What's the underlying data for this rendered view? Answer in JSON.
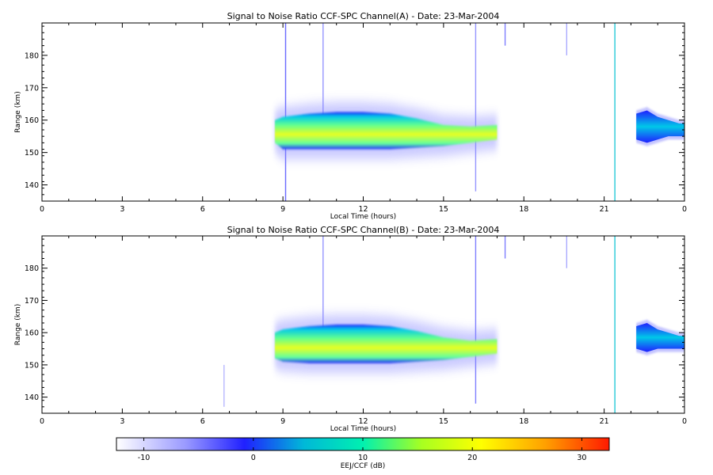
{
  "chart_data": [
    {
      "type": "heatmap",
      "title": "Signal to Noise Ratio CCF-SPC Channel(A) - Date: 23-Mar-2004",
      "xlabel": "Local Time (hours)",
      "ylabel": "Range (km)",
      "xlim": [
        0,
        24
      ],
      "ylim": [
        135,
        190
      ],
      "x_ticks": [
        "0",
        "3",
        "6",
        "9",
        "12",
        "15",
        "18",
        "21",
        "0"
      ],
      "y_ticks": [
        "140",
        "150",
        "160",
        "170",
        "180"
      ],
      "y_tick_values": [
        140,
        150,
        160,
        170,
        180
      ],
      "x_tick_values": [
        0,
        3,
        6,
        9,
        12,
        15,
        18,
        21,
        24
      ],
      "main_echo": {
        "x": [
          8.7,
          9.0,
          10.0,
          11.0,
          12.0,
          13.0,
          14.0,
          15.0,
          16.0,
          17.0
        ],
        "y_low": [
          153,
          151,
          151,
          151,
          151,
          151,
          151.5,
          152,
          153,
          154
        ],
        "y_high": [
          160,
          161,
          162,
          162.5,
          162.5,
          162,
          160.5,
          158.5,
          158,
          158.5
        ],
        "peak_snr_db": 15
      },
      "late_echo": {
        "x": [
          22.2,
          22.6,
          23.0,
          23.4,
          23.8,
          24.0
        ],
        "y_low": [
          154,
          153,
          154,
          155,
          155,
          155
        ],
        "y_high": [
          162,
          163,
          161,
          160,
          159,
          159
        ],
        "peak_snr_db": 5
      },
      "streaks": [
        {
          "x": 9.1,
          "y0": 135,
          "y1": 190,
          "snr_db": -3
        },
        {
          "x": 10.5,
          "y0": 160,
          "y1": 190,
          "snr_db": -5
        },
        {
          "x": 16.2,
          "y0": 138,
          "y1": 190,
          "snr_db": -5
        },
        {
          "x": 17.3,
          "y0": 183,
          "y1": 190,
          "snr_db": -4
        },
        {
          "x": 19.6,
          "y0": 180,
          "y1": 190,
          "snr_db": -6
        },
        {
          "x": 21.4,
          "y0": 135,
          "y1": 190,
          "snr_db": 5
        }
      ]
    },
    {
      "type": "heatmap",
      "title": "Signal to Noise Ratio CCF-SPC Channel(B) - Date: 23-Mar-2004",
      "xlabel": "Local Time (hours)",
      "ylabel": "Range (km)",
      "xlim": [
        0,
        24
      ],
      "ylim": [
        135,
        190
      ],
      "x_ticks": [
        "0",
        "3",
        "6",
        "9",
        "12",
        "15",
        "18",
        "21",
        "0"
      ],
      "y_ticks": [
        "140",
        "150",
        "160",
        "170",
        "180"
      ],
      "y_tick_values": [
        140,
        150,
        160,
        170,
        180
      ],
      "x_tick_values": [
        0,
        3,
        6,
        9,
        12,
        15,
        18,
        21,
        24
      ],
      "main_echo": {
        "x": [
          8.7,
          9.0,
          10.0,
          11.0,
          12.0,
          13.0,
          14.0,
          15.0,
          16.0,
          17.0
        ],
        "y_low": [
          152,
          151,
          150.5,
          150.5,
          150.5,
          150.5,
          151,
          151.5,
          152.5,
          153.5
        ],
        "y_high": [
          160,
          161,
          162,
          162.5,
          162.5,
          162,
          160.5,
          158.5,
          157.5,
          158
        ],
        "peak_snr_db": 15
      },
      "late_echo": {
        "x": [
          22.2,
          22.6,
          23.0,
          23.4,
          23.8,
          24.0
        ],
        "y_low": [
          155,
          154,
          155,
          155,
          155,
          155
        ],
        "y_high": [
          162,
          163,
          161,
          160,
          159,
          159
        ],
        "peak_snr_db": 5
      },
      "streaks": [
        {
          "x": 6.8,
          "y0": 137,
          "y1": 150,
          "snr_db": -7
        },
        {
          "x": 10.5,
          "y0": 160,
          "y1": 190,
          "snr_db": -5
        },
        {
          "x": 16.2,
          "y0": 138,
          "y1": 190,
          "snr_db": -4
        },
        {
          "x": 17.3,
          "y0": 183,
          "y1": 190,
          "snr_db": -4
        },
        {
          "x": 19.6,
          "y0": 180,
          "y1": 190,
          "snr_db": -6
        },
        {
          "x": 21.4,
          "y0": 135,
          "y1": 190,
          "snr_db": 5
        }
      ]
    }
  ],
  "colorbar": {
    "label": "EEJ/CCF (dB)",
    "range": [
      -12.5,
      32.5
    ],
    "ticks": [
      "-10",
      "0",
      "10",
      "20",
      "30"
    ],
    "tick_values": [
      -10,
      0,
      10,
      20,
      30
    ],
    "colormap": [
      "#ffffff",
      "#7a7aff",
      "#2020ff",
      "#00c8c8",
      "#00ffb0",
      "#c8ff00",
      "#ffff00",
      "#ffa000",
      "#ff2000"
    ]
  }
}
